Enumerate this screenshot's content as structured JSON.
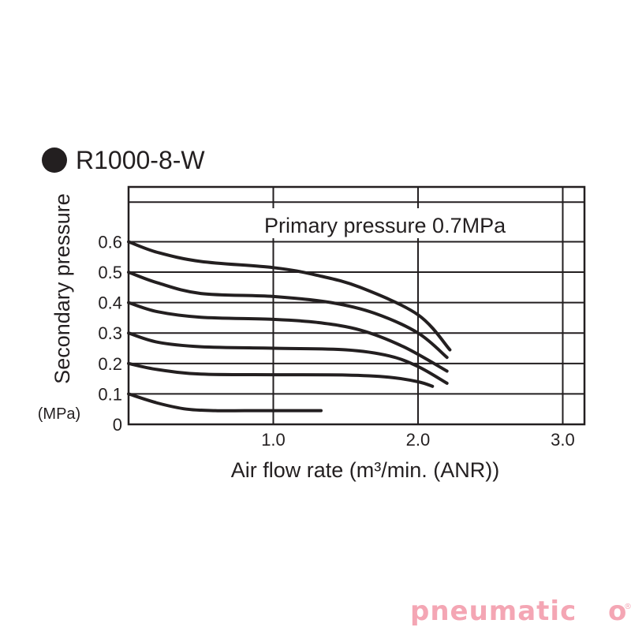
{
  "chart_data": {
    "type": "line",
    "title": "R1000-8-W",
    "annotation": "Primary pressure 0.7MPa",
    "xlabel": "Air flow rate (m³/min. (ANR))",
    "ylabel": "Secondary pressure",
    "yunit": "(MPa)",
    "xlim": [
      0,
      3.15
    ],
    "ylim": [
      0,
      0.78
    ],
    "x_ticks": [
      "1.0",
      "2.0",
      "3.0"
    ],
    "y_ticks": [
      "0",
      "0.1",
      "0.2",
      "0.3",
      "0.4",
      "0.5",
      "0.6"
    ],
    "grid": true,
    "series": [
      {
        "x": [
          0,
          0.2,
          0.4,
          0.6,
          0.8,
          1.0,
          1.2,
          1.33
        ],
        "y": [
          0.1,
          0.07,
          0.05,
          0.045,
          0.045,
          0.045,
          0.045,
          0.045
        ]
      },
      {
        "x": [
          0,
          0.2,
          0.5,
          1.0,
          1.5,
          1.8,
          2.0,
          2.1
        ],
        "y": [
          0.2,
          0.18,
          0.165,
          0.163,
          0.162,
          0.155,
          0.14,
          0.125
        ]
      },
      {
        "x": [
          0,
          0.2,
          0.5,
          1.0,
          1.5,
          1.8,
          2.0,
          2.2
        ],
        "y": [
          0.3,
          0.27,
          0.255,
          0.25,
          0.245,
          0.225,
          0.19,
          0.135
        ]
      },
      {
        "x": [
          0,
          0.2,
          0.5,
          1.0,
          1.3,
          1.6,
          1.9,
          2.2
        ],
        "y": [
          0.4,
          0.37,
          0.352,
          0.345,
          0.335,
          0.31,
          0.255,
          0.175
        ]
      },
      {
        "x": [
          0,
          0.2,
          0.5,
          1.0,
          1.4,
          1.7,
          2.0,
          2.2
        ],
        "y": [
          0.5,
          0.465,
          0.43,
          0.42,
          0.4,
          0.365,
          0.3,
          0.22
        ]
      },
      {
        "x": [
          0,
          0.2,
          0.5,
          1.0,
          1.3,
          1.6,
          2.0,
          2.22
        ],
        "y": [
          0.6,
          0.565,
          0.535,
          0.515,
          0.49,
          0.45,
          0.36,
          0.245
        ]
      }
    ]
  },
  "brand": {
    "text": "pneumatic",
    "suffix": "o",
    "color": "#f4a6b4",
    "registered_mark": "®"
  }
}
